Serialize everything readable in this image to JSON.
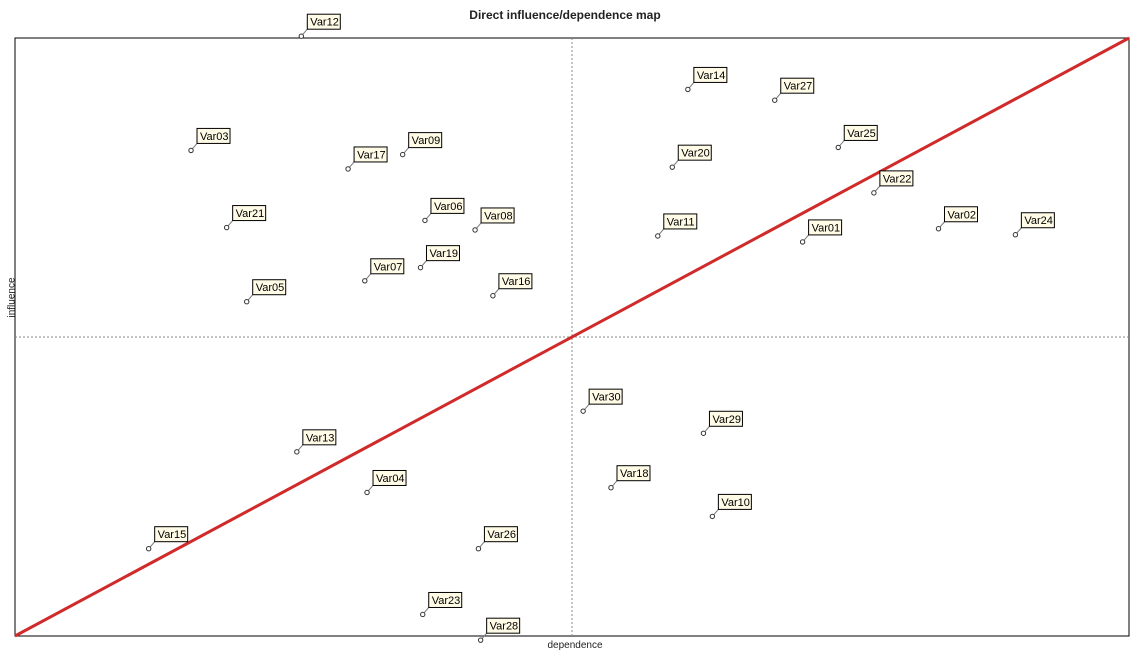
{
  "chart_data": {
    "type": "scatter",
    "title": "Direct influence/dependence map",
    "xlabel": "dependence",
    "ylabel": "influence",
    "xlim": [
      0,
      1000
    ],
    "ylim": [
      0,
      1000
    ],
    "grid": false,
    "reference_lines": {
      "x": 500,
      "y": 500
    },
    "diagonal": {
      "from": [
        0,
        0
      ],
      "to": [
        1000,
        1000
      ],
      "color": "#d02a2a"
    },
    "colors": {
      "frame": "#000000",
      "label_fill": "#fffbe6",
      "axis_guides": "#888888"
    },
    "points": [
      {
        "label": "Var12",
        "x": 257,
        "y": 1003
      },
      {
        "label": "Var03",
        "x": 158,
        "y": 812
      },
      {
        "label": "Var09",
        "x": 348,
        "y": 805
      },
      {
        "label": "Var17",
        "x": 299,
        "y": 781
      },
      {
        "label": "Var21",
        "x": 190,
        "y": 683
      },
      {
        "label": "Var06",
        "x": 368,
        "y": 695
      },
      {
        "label": "Var08",
        "x": 413,
        "y": 679
      },
      {
        "label": "Var19",
        "x": 364,
        "y": 616
      },
      {
        "label": "Var07",
        "x": 314,
        "y": 594
      },
      {
        "label": "Var16",
        "x": 429,
        "y": 569
      },
      {
        "label": "Var05",
        "x": 208,
        "y": 559
      },
      {
        "label": "Var14",
        "x": 604,
        "y": 914
      },
      {
        "label": "Var27",
        "x": 682,
        "y": 896
      },
      {
        "label": "Var25",
        "x": 739,
        "y": 817
      },
      {
        "label": "Var20",
        "x": 590,
        "y": 784
      },
      {
        "label": "Var22",
        "x": 771,
        "y": 741
      },
      {
        "label": "Var11",
        "x": 577,
        "y": 669
      },
      {
        "label": "Var01",
        "x": 707,
        "y": 659
      },
      {
        "label": "Var02",
        "x": 829,
        "y": 681
      },
      {
        "label": "Var24",
        "x": 898,
        "y": 671
      },
      {
        "label": "Var30",
        "x": 510,
        "y": 376
      },
      {
        "label": "Var29",
        "x": 618,
        "y": 339
      },
      {
        "label": "Var18",
        "x": 535,
        "y": 248
      },
      {
        "label": "Var10",
        "x": 626,
        "y": 200
      },
      {
        "label": "Var13",
        "x": 253,
        "y": 308
      },
      {
        "label": "Var04",
        "x": 316,
        "y": 240
      },
      {
        "label": "Var15",
        "x": 120,
        "y": 146
      },
      {
        "label": "Var26",
        "x": 416,
        "y": 146
      },
      {
        "label": "Var23",
        "x": 366,
        "y": 36
      },
      {
        "label": "Var28",
        "x": 418,
        "y": -7
      }
    ]
  }
}
